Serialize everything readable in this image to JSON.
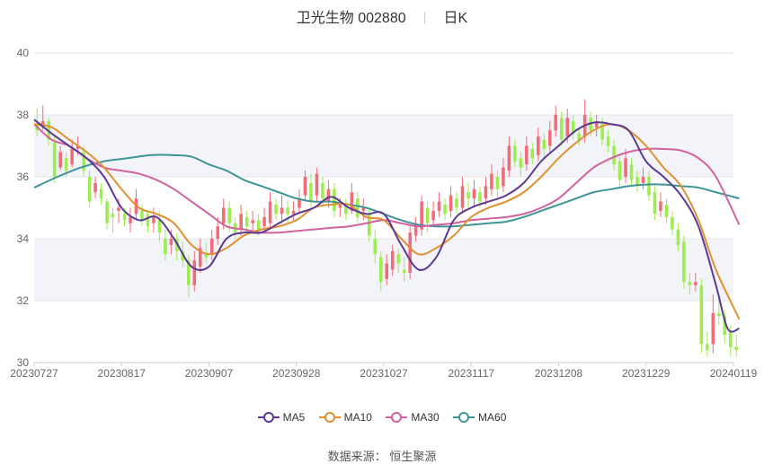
{
  "header": {
    "title": "卫光生物 002880",
    "period": "日K"
  },
  "source": {
    "label": "数据来源：",
    "name": "恒生聚源"
  },
  "chart_data": {
    "type": "candlestick",
    "y_ticks": [
      "30",
      "32",
      "34",
      "36",
      "38",
      "40"
    ],
    "ylim": [
      30,
      40
    ],
    "x_ticks": [
      "20230727",
      "20230817",
      "20230907",
      "20230928",
      "20231027",
      "20231117",
      "20231208",
      "20231229",
      "20240119"
    ],
    "num_points": 121,
    "colors": {
      "up": "#f16b78",
      "down": "#9ded4f",
      "MA5": "#5b3a94",
      "MA10": "#e0902f",
      "MA30": "#d2629f",
      "MA60": "#3e9596"
    },
    "series": [
      {
        "name": "MA5",
        "color": "#5b3a94",
        "points": [
          [
            0,
            37.85
          ],
          [
            3,
            37.4
          ],
          [
            6,
            37.0
          ],
          [
            9,
            36.6
          ],
          [
            12,
            36.0
          ],
          [
            15,
            35.0
          ],
          [
            18,
            34.6
          ],
          [
            21,
            34.7
          ],
          [
            24,
            34.0
          ],
          [
            27,
            33.1
          ],
          [
            30,
            33.1
          ],
          [
            33,
            34.0
          ],
          [
            36,
            34.2
          ],
          [
            39,
            34.2
          ],
          [
            42,
            34.5
          ],
          [
            45,
            34.8
          ],
          [
            48,
            35.0
          ],
          [
            51,
            35.35
          ],
          [
            54,
            35.0
          ],
          [
            57,
            34.8
          ],
          [
            60,
            34.8
          ],
          [
            63,
            33.8
          ],
          [
            66,
            33.0
          ],
          [
            69,
            33.4
          ],
          [
            72,
            34.6
          ],
          [
            75,
            35.0
          ],
          [
            78,
            35.2
          ],
          [
            81,
            35.4
          ],
          [
            84,
            35.8
          ],
          [
            87,
            36.5
          ],
          [
            90,
            37.0
          ],
          [
            93,
            37.5
          ],
          [
            96,
            37.75
          ],
          [
            99,
            37.7
          ],
          [
            102,
            37.5
          ],
          [
            105,
            36.5
          ],
          [
            108,
            36.0
          ],
          [
            111,
            35.4
          ],
          [
            114,
            34.4
          ],
          [
            117,
            32.5
          ],
          [
            119,
            31.1
          ],
          [
            121,
            31.1
          ]
        ]
      },
      {
        "name": "MA10",
        "color": "#e0902f",
        "points": [
          [
            0,
            37.7
          ],
          [
            3,
            37.6
          ],
          [
            6,
            37.2
          ],
          [
            9,
            36.8
          ],
          [
            12,
            36.3
          ],
          [
            15,
            35.6
          ],
          [
            18,
            35.0
          ],
          [
            21,
            34.8
          ],
          [
            24,
            34.5
          ],
          [
            27,
            33.8
          ],
          [
            30,
            33.5
          ],
          [
            33,
            33.7
          ],
          [
            36,
            34.1
          ],
          [
            39,
            34.3
          ],
          [
            42,
            34.4
          ],
          [
            45,
            34.6
          ],
          [
            48,
            35.0
          ],
          [
            51,
            35.1
          ],
          [
            54,
            35.1
          ],
          [
            57,
            34.7
          ],
          [
            60,
            34.6
          ],
          [
            63,
            34.0
          ],
          [
            66,
            33.5
          ],
          [
            69,
            33.7
          ],
          [
            72,
            34.1
          ],
          [
            75,
            34.7
          ],
          [
            78,
            35.0
          ],
          [
            81,
            35.2
          ],
          [
            84,
            35.5
          ],
          [
            87,
            36.0
          ],
          [
            90,
            36.6
          ],
          [
            93,
            37.1
          ],
          [
            96,
            37.5
          ],
          [
            99,
            37.7
          ],
          [
            102,
            37.5
          ],
          [
            105,
            37.0
          ],
          [
            108,
            36.3
          ],
          [
            111,
            35.7
          ],
          [
            114,
            34.6
          ],
          [
            117,
            33.0
          ],
          [
            121,
            31.4
          ]
        ]
      },
      {
        "name": "MA30",
        "color": "#d2629f",
        "points": [
          [
            0,
            37.7
          ],
          [
            3,
            37.2
          ],
          [
            6,
            37.0
          ],
          [
            9,
            36.6
          ],
          [
            12,
            36.3
          ],
          [
            15,
            36.2
          ],
          [
            18,
            36.1
          ],
          [
            21,
            35.9
          ],
          [
            24,
            35.6
          ],
          [
            27,
            35.2
          ],
          [
            30,
            34.8
          ],
          [
            33,
            34.4
          ],
          [
            36,
            34.3
          ],
          [
            39,
            34.2
          ],
          [
            42,
            34.2
          ],
          [
            45,
            34.25
          ],
          [
            48,
            34.3
          ],
          [
            51,
            34.35
          ],
          [
            54,
            34.4
          ],
          [
            57,
            34.5
          ],
          [
            60,
            34.6
          ],
          [
            63,
            34.5
          ],
          [
            66,
            34.4
          ],
          [
            69,
            34.45
          ],
          [
            72,
            34.5
          ],
          [
            75,
            34.6
          ],
          [
            78,
            34.65
          ],
          [
            81,
            34.7
          ],
          [
            84,
            34.8
          ],
          [
            87,
            35.0
          ],
          [
            90,
            35.3
          ],
          [
            93,
            35.8
          ],
          [
            96,
            36.3
          ],
          [
            99,
            36.6
          ],
          [
            102,
            36.8
          ],
          [
            105,
            36.9
          ],
          [
            108,
            36.9
          ],
          [
            111,
            36.85
          ],
          [
            114,
            36.6
          ],
          [
            117,
            36.0
          ],
          [
            121,
            34.45
          ]
        ]
      },
      {
        "name": "MA60",
        "color": "#3e9596",
        "points": [
          [
            0,
            35.65
          ],
          [
            4,
            36.0
          ],
          [
            8,
            36.3
          ],
          [
            12,
            36.5
          ],
          [
            16,
            36.6
          ],
          [
            20,
            36.7
          ],
          [
            24,
            36.7
          ],
          [
            27,
            36.65
          ],
          [
            30,
            36.4
          ],
          [
            33,
            36.2
          ],
          [
            36,
            35.9
          ],
          [
            39,
            35.7
          ],
          [
            42,
            35.5
          ],
          [
            45,
            35.3
          ],
          [
            48,
            35.2
          ],
          [
            51,
            35.2
          ],
          [
            54,
            35.1
          ],
          [
            57,
            35.0
          ],
          [
            60,
            34.8
          ],
          [
            63,
            34.6
          ],
          [
            66,
            34.45
          ],
          [
            69,
            34.4
          ],
          [
            72,
            34.4
          ],
          [
            75,
            34.45
          ],
          [
            78,
            34.5
          ],
          [
            81,
            34.55
          ],
          [
            84,
            34.7
          ],
          [
            87,
            34.9
          ],
          [
            90,
            35.1
          ],
          [
            93,
            35.3
          ],
          [
            96,
            35.5
          ],
          [
            99,
            35.6
          ],
          [
            102,
            35.7
          ],
          [
            105,
            35.75
          ],
          [
            108,
            35.75
          ],
          [
            111,
            35.7
          ],
          [
            114,
            35.65
          ],
          [
            117,
            35.5
          ],
          [
            121,
            35.3
          ]
        ]
      }
    ],
    "candles": [
      [
        37.7,
        37.5,
        38.2,
        37.3
      ],
      [
        37.6,
        37.8,
        38.3,
        37.5
      ],
      [
        37.8,
        37.2,
        37.9,
        37.0
      ],
      [
        37.1,
        36.0,
        37.3,
        35.8
      ],
      [
        36.3,
        36.8,
        37.0,
        36.2
      ],
      [
        36.6,
        36.2,
        36.8,
        36.0
      ],
      [
        36.4,
        36.9,
        37.2,
        36.3
      ],
      [
        36.9,
        37.0,
        37.3,
        36.7
      ],
      [
        36.8,
        36.2,
        37.0,
        36.0
      ],
      [
        36.0,
        35.2,
        36.2,
        35.0
      ],
      [
        35.5,
        35.8,
        36.0,
        35.3
      ],
      [
        35.6,
        35.3,
        35.8,
        35.1
      ],
      [
        35.2,
        34.5,
        35.3,
        34.3
      ],
      [
        34.8,
        34.7,
        35.0,
        34.2
      ],
      [
        34.9,
        35.0,
        35.3,
        34.5
      ],
      [
        34.8,
        34.6,
        35.0,
        34.4
      ],
      [
        34.5,
        34.7,
        35.0,
        34.2
      ],
      [
        34.8,
        35.3,
        35.6,
        34.6
      ],
      [
        34.9,
        34.6,
        35.1,
        34.4
      ],
      [
        34.8,
        34.4,
        34.9,
        34.2
      ],
      [
        34.5,
        34.7,
        35.0,
        34.2
      ],
      [
        34.6,
        34.2,
        34.9,
        33.9
      ],
      [
        34.0,
        33.5,
        34.3,
        33.3
      ],
      [
        33.8,
        34.0,
        34.3,
        33.5
      ],
      [
        34.0,
        33.6,
        34.2,
        33.3
      ],
      [
        33.6,
        33.3,
        33.9,
        33.1
      ],
      [
        33.3,
        32.5,
        33.5,
        32.1
      ],
      [
        32.5,
        33.3,
        33.6,
        32.3
      ],
      [
        33.1,
        33.7,
        34.0,
        32.9
      ],
      [
        33.5,
        33.4,
        33.9,
        33.2
      ],
      [
        33.5,
        34.0,
        34.3,
        33.3
      ],
      [
        34.0,
        34.4,
        34.7,
        33.8
      ],
      [
        34.5,
        35.0,
        35.3,
        34.3
      ],
      [
        35.0,
        34.5,
        35.2,
        34.2
      ],
      [
        34.5,
        34.2,
        34.7,
        34.0
      ],
      [
        34.3,
        34.8,
        35.1,
        34.1
      ],
      [
        34.7,
        34.4,
        34.9,
        34.2
      ],
      [
        34.5,
        34.6,
        34.9,
        34.2
      ],
      [
        34.6,
        34.3,
        34.8,
        34.1
      ],
      [
        34.4,
        34.7,
        35.0,
        34.2
      ],
      [
        34.5,
        35.2,
        35.5,
        34.3
      ],
      [
        35.1,
        34.8,
        35.3,
        34.6
      ],
      [
        34.8,
        35.0,
        35.4,
        34.5
      ],
      [
        35.0,
        34.8,
        35.2,
        34.5
      ],
      [
        34.8,
        34.9,
        35.2,
        34.6
      ],
      [
        35.0,
        35.3,
        35.6,
        34.8
      ],
      [
        35.4,
        36.0,
        36.2,
        35.2
      ],
      [
        35.8,
        35.2,
        36.1,
        35.0
      ],
      [
        35.4,
        36.1,
        36.3,
        35.2
      ],
      [
        35.8,
        35.3,
        36.0,
        35.0
      ],
      [
        35.2,
        35.6,
        35.9,
        35.0
      ],
      [
        35.6,
        34.9,
        35.8,
        34.7
      ],
      [
        35.0,
        35.1,
        35.3,
        34.7
      ],
      [
        35.1,
        34.8,
        35.3,
        34.6
      ],
      [
        34.9,
        35.5,
        35.8,
        34.8
      ],
      [
        35.3,
        34.7,
        35.5,
        34.5
      ],
      [
        34.9,
        35.0,
        35.3,
        34.6
      ],
      [
        34.8,
        34.1,
        35.0,
        33.9
      ],
      [
        34.0,
        33.5,
        34.3,
        33.2
      ],
      [
        33.4,
        32.6,
        33.6,
        32.3
      ],
      [
        32.7,
        33.2,
        33.5,
        32.5
      ],
      [
        33.0,
        33.6,
        33.8,
        32.8
      ],
      [
        33.5,
        33.2,
        33.7,
        32.9
      ],
      [
        33.0,
        32.9,
        33.4,
        32.6
      ],
      [
        32.9,
        34.2,
        34.4,
        32.7
      ],
      [
        34.1,
        34.5,
        34.7,
        33.9
      ],
      [
        34.3,
        35.2,
        35.4,
        34.1
      ],
      [
        35.0,
        34.5,
        35.2,
        34.2
      ],
      [
        34.6,
        34.9,
        35.2,
        34.4
      ],
      [
        34.9,
        35.2,
        35.5,
        34.7
      ],
      [
        35.1,
        34.8,
        35.3,
        34.6
      ],
      [
        34.9,
        35.4,
        35.7,
        34.7
      ],
      [
        35.3,
        35.0,
        35.5,
        34.8
      ],
      [
        35.0,
        35.7,
        36.0,
        34.8
      ],
      [
        35.5,
        35.3,
        35.8,
        35.0
      ],
      [
        35.3,
        35.6,
        35.9,
        35.0
      ],
      [
        35.5,
        35.2,
        35.7,
        35.0
      ],
      [
        35.3,
        35.7,
        36.0,
        35.1
      ],
      [
        35.6,
        36.1,
        36.4,
        35.4
      ],
      [
        36.0,
        35.6,
        36.2,
        35.3
      ],
      [
        35.7,
        36.3,
        36.6,
        35.5
      ],
      [
        36.2,
        37.0,
        37.3,
        36.0
      ],
      [
        37.0,
        36.5,
        37.2,
        36.3
      ],
      [
        36.6,
        36.3,
        36.8,
        36.0
      ],
      [
        36.4,
        37.0,
        37.3,
        36.2
      ],
      [
        36.9,
        36.6,
        37.1,
        36.4
      ],
      [
        36.7,
        37.3,
        37.6,
        36.5
      ],
      [
        37.2,
        36.9,
        37.4,
        36.6
      ],
      [
        37.0,
        37.5,
        37.8,
        36.8
      ],
      [
        37.5,
        38.0,
        38.3,
        37.3
      ],
      [
        37.9,
        37.2,
        38.1,
        37.0
      ],
      [
        37.3,
        37.9,
        38.2,
        37.1
      ],
      [
        37.8,
        37.4,
        38.0,
        37.2
      ],
      [
        37.4,
        37.2,
        37.6,
        37.0
      ],
      [
        37.3,
        38.0,
        38.5,
        37.1
      ],
      [
        37.9,
        37.5,
        38.1,
        37.3
      ],
      [
        37.6,
        37.8,
        38.0,
        37.3
      ],
      [
        37.7,
        37.2,
        37.9,
        37.0
      ],
      [
        37.3,
        37.0,
        37.5,
        36.8
      ],
      [
        37.0,
        36.4,
        37.2,
        36.2
      ],
      [
        36.5,
        35.9,
        36.7,
        35.7
      ],
      [
        36.0,
        36.6,
        36.9,
        35.8
      ],
      [
        36.4,
        35.9,
        36.6,
        35.7
      ],
      [
        36.0,
        35.7,
        36.2,
        35.5
      ],
      [
        35.8,
        36.0,
        36.3,
        35.6
      ],
      [
        36.0,
        35.4,
        36.2,
        35.2
      ],
      [
        35.5,
        34.8,
        35.7,
        34.6
      ],
      [
        34.9,
        35.2,
        35.5,
        34.7
      ],
      [
        35.1,
        34.7,
        35.3,
        34.5
      ],
      [
        34.7,
        34.3,
        34.9,
        34.1
      ],
      [
        34.3,
        33.8,
        34.5,
        33.6
      ],
      [
        33.9,
        32.6,
        34.1,
        32.4
      ],
      [
        32.6,
        32.5,
        32.9,
        32.2
      ],
      [
        32.5,
        32.6,
        32.9,
        32.3
      ],
      [
        32.5,
        30.6,
        32.7,
        30.3
      ],
      [
        30.6,
        30.4,
        31.0,
        30.2
      ],
      [
        30.6,
        31.6,
        32.2,
        30.3
      ],
      [
        31.6,
        31.5,
        32.1,
        31.2
      ],
      [
        31.5,
        30.9,
        31.7,
        30.6
      ],
      [
        31.0,
        30.5,
        31.2,
        30.2
      ],
      [
        30.5,
        30.4,
        30.9,
        30.2
      ]
    ]
  },
  "legend": {
    "items": [
      {
        "label": "MA5",
        "color": "#5b3a94"
      },
      {
        "label": "MA10",
        "color": "#e0902f"
      },
      {
        "label": "MA30",
        "color": "#d2629f"
      },
      {
        "label": "MA60",
        "color": "#3e9596"
      }
    ]
  }
}
